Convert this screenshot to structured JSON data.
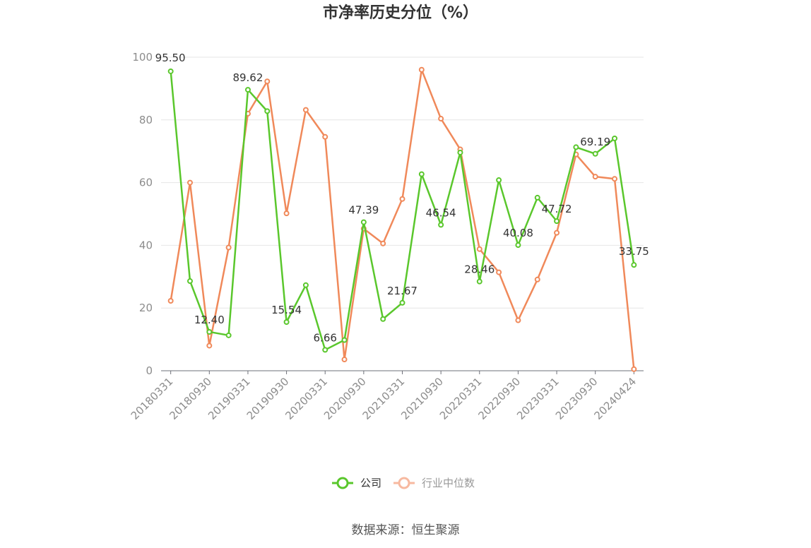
{
  "chart_data": {
    "type": "line",
    "title": "市净率历史分位（%）",
    "x": [
      "20180331",
      "20180630",
      "20180930",
      "20181231",
      "20190331",
      "20190630",
      "20190930",
      "20191231",
      "20200331",
      "20200630",
      "20200930",
      "20201231",
      "20210331",
      "20210630",
      "20210930",
      "20211231",
      "20220331",
      "20220630",
      "20220930",
      "20221231",
      "20230331",
      "20230630",
      "20230930",
      "20231231",
      "20240424"
    ],
    "x_tick_labels": [
      "20180331",
      "20180930",
      "20190331",
      "20190930",
      "20200331",
      "20200930",
      "20210331",
      "20210930",
      "20220331",
      "20220930",
      "20230331",
      "20230930",
      "20240424"
    ],
    "y_ticks": [
      "0",
      "20",
      "40",
      "60",
      "80",
      "100"
    ],
    "ylim": [
      0,
      100
    ],
    "grid": true,
    "legend_position": "bottom",
    "series": [
      {
        "name": "公司",
        "color": "#5ac72c",
        "values": [
          95.5,
          28.6,
          12.4,
          11.3,
          89.62,
          82.8,
          15.54,
          27.3,
          6.66,
          9.8,
          47.39,
          16.5,
          21.67,
          62.7,
          46.54,
          69.6,
          28.46,
          60.8,
          40.08,
          55.2,
          47.72,
          71.3,
          69.19,
          74.1,
          33.75
        ],
        "labels": [
          "95.50",
          "",
          "12.40",
          "",
          "89.62",
          "",
          "15.54",
          "",
          "6.66",
          "",
          "47.39",
          "",
          "21.67",
          "",
          "46.54",
          "",
          "28.46",
          "",
          "40.08",
          "",
          "47.72",
          "",
          "69.19",
          "",
          "33.75"
        ]
      },
      {
        "name": "行业中位数",
        "color": "#f0895a",
        "values": [
          22.3,
          60.0,
          8.0,
          39.3,
          82.0,
          92.3,
          50.2,
          83.2,
          74.6,
          3.6,
          45.3,
          40.6,
          54.8,
          96.0,
          80.4,
          70.6,
          38.8,
          31.4,
          16.1,
          29.1,
          44.0,
          69.0,
          61.9,
          61.2,
          0.5
        ]
      }
    ],
    "source": "数据来源：恒生聚源"
  }
}
